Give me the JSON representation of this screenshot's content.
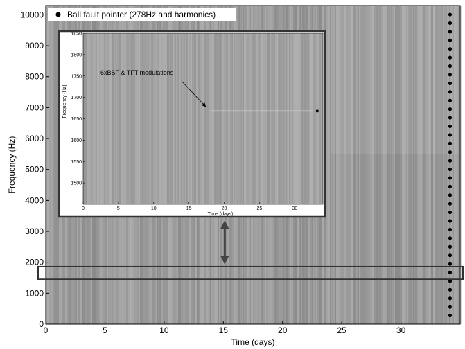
{
  "chart_data": [
    {
      "type": "heatmap",
      "xlabel": "Time (days)",
      "ylabel": "Frequency (Hz)",
      "xlim": [
        0,
        35
      ],
      "ylim": [
        0,
        10300
      ],
      "xticks": [
        0,
        5,
        10,
        15,
        20,
        25,
        30
      ],
      "yticks": [
        0,
        1000,
        2000,
        3000,
        4000,
        5000,
        6000,
        7000,
        8000,
        9000,
        10000
      ],
      "legend": {
        "label": "Ball fault pointer (278Hz and harmonics)",
        "position": "top-left"
      },
      "pointer_frequencies": [
        278,
        556,
        834,
        1112,
        1390,
        1668,
        1946,
        2224,
        2502,
        2780,
        3058,
        3336,
        3614,
        3892,
        4170,
        4448,
        4726,
        5004,
        5282,
        5560,
        5838,
        6116,
        6394,
        6672,
        6950,
        7228,
        7506,
        7784,
        8062,
        8340,
        8618,
        8896,
        9174,
        9452,
        9730,
        10008
      ],
      "pointer_time": 34.5,
      "highlight_band": [
        1450,
        1860
      ],
      "colormap": "grayscale"
    },
    {
      "type": "heatmap",
      "role": "inset",
      "xlabel": "Time (days)",
      "ylabel": "Frequency (Hz)",
      "xlim": [
        0,
        34
      ],
      "ylim": [
        1450,
        1850
      ],
      "xticks": [
        0,
        5,
        10,
        15,
        20,
        25,
        30
      ],
      "yticks": [
        1500,
        1550,
        1600,
        1650,
        1700,
        1750,
        1800,
        1850
      ],
      "annotation": {
        "text": "6xBSF & TFT modulations",
        "target_time": 18,
        "target_freq": 1668
      },
      "modulation_line": {
        "freq": 1668,
        "t_start": 18,
        "t_end": 33
      },
      "pointer": {
        "time": 33,
        "freq": 1668
      }
    }
  ],
  "colors": {
    "background_mid": "#9a9a9a",
    "frame": "#333333",
    "arrow": "#444444",
    "pointer": "#000000"
  }
}
